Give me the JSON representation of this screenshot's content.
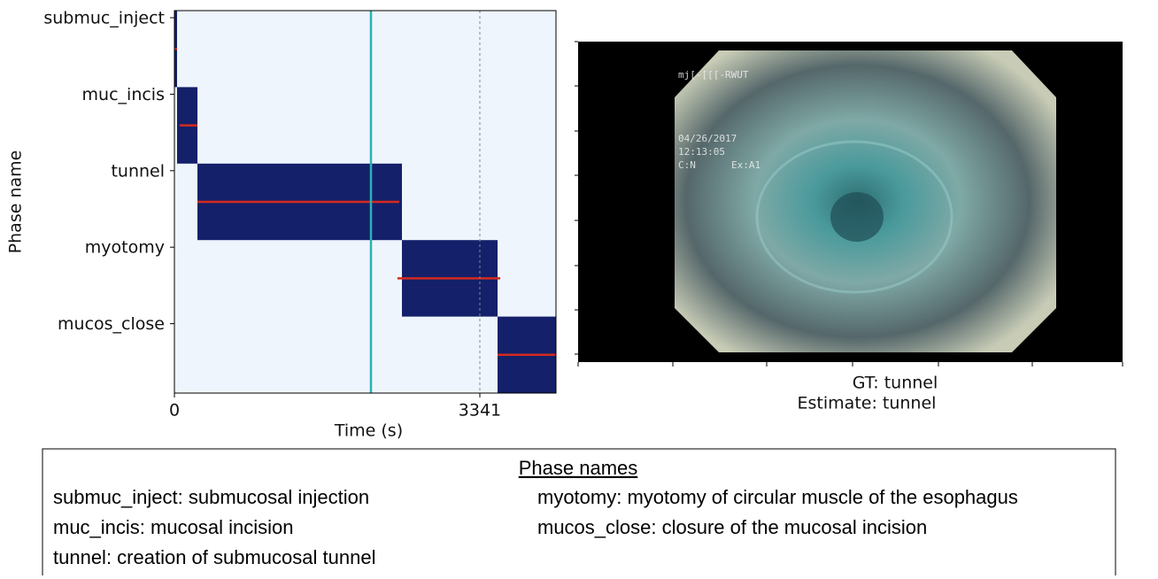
{
  "chart_data": {
    "type": "timeline",
    "y_label": "Phase name",
    "x_label": "Time (s)",
    "categories": [
      "submuc_inject",
      "muc_incis",
      "tunnel",
      "myotomy",
      "mucos_close"
    ],
    "xlim": [
      0,
      4174
    ],
    "xticks": [
      0,
      3341
    ],
    "current_time": 2150,
    "background": "#eef5fd",
    "current_color": "#2ab3b3",
    "ground_truth": {
      "color": "#14206a",
      "intervals": [
        [
          0,
          29
        ],
        [
          29,
          252
        ],
        [
          252,
          2489
        ],
        [
          2489,
          3535
        ],
        [
          3535,
          4174
        ]
      ]
    },
    "estimate": {
      "color": "#d42a1e",
      "intervals": [
        [
          0,
          29
        ],
        [
          58,
          252
        ],
        [
          252,
          2460
        ],
        [
          2440,
          3564
        ],
        [
          3535,
          4174
        ]
      ]
    },
    "gt_text": "GT: tunnel",
    "estimate_text": "Estimate: tunnel"
  },
  "video": {
    "overlay": [
      "mj[-[[[-RWUT",
      "04/26/2017",
      "12:13:05",
      "C:N",
      "Ex:A1"
    ]
  },
  "legend": {
    "title": "Phase names",
    "left": [
      "submuc_inject: submucosal injection",
      "muc_incis: mucosal incision",
      "tunnel: creation of submucosal tunnel"
    ],
    "right": [
      "myotomy: myotomy of circular muscle of the esophagus",
      "mucos_close: closure of the mucosal incision"
    ]
  }
}
